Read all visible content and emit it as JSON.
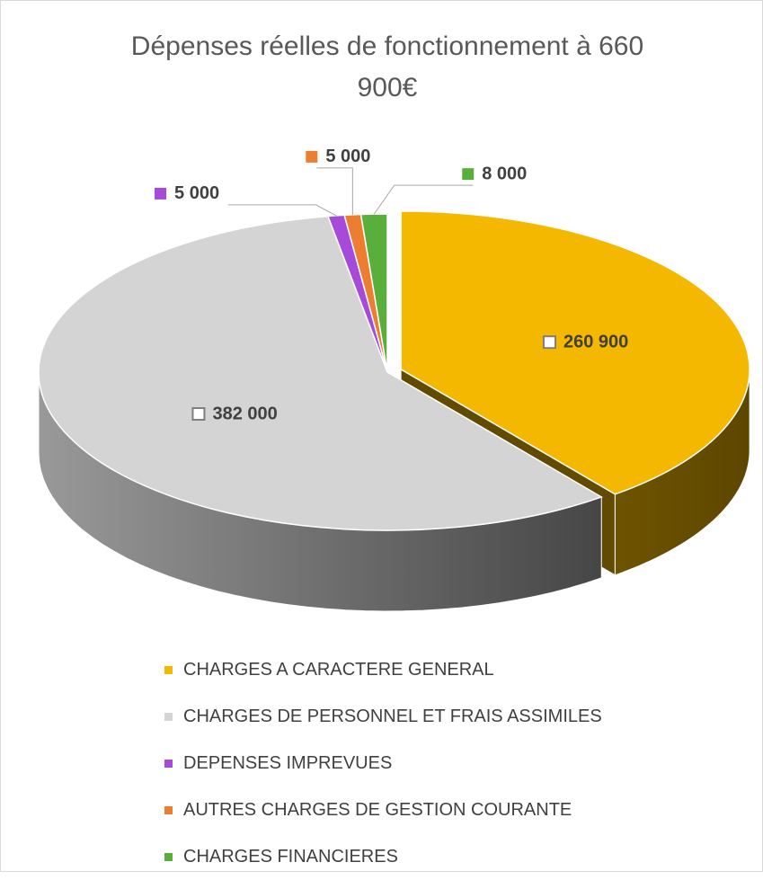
{
  "chart_data": {
    "type": "pie3d",
    "title": "Dépenses réelles de fonctionnement à 660 900€",
    "categories": [
      "CHARGES A CARACTERE GENERAL",
      "CHARGES DE PERSONNEL ET FRAIS ASSIMILES",
      "DEPENSES IMPREVUES",
      "AUTRES CHARGES DE GESTION COURANTE",
      "CHARGES FINANCIERES"
    ],
    "values": [
      260900,
      382000,
      5000,
      5000,
      8000
    ],
    "value_labels": [
      "260 900",
      "382 000",
      "5 000",
      "5 000",
      "8 000"
    ],
    "colors": [
      "#f5b800",
      "#d4d4d4",
      "#a64ad9",
      "#ed7d31",
      "#5aaf3c"
    ],
    "legend": "bottom"
  }
}
